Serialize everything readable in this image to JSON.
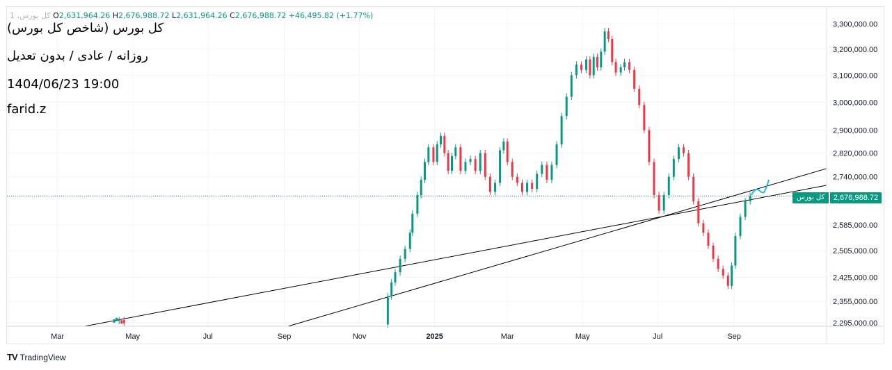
{
  "header": {
    "symbol_label": "کل بورس، 1",
    "open_key": "O",
    "open": "2,631,964.26",
    "high_key": "H",
    "high": "2,676,988.72",
    "low_key": "L",
    "low": "2,631,964.26",
    "close_key": "C",
    "close": "2,676,988.72",
    "change": "+46,495.82 (+1.77%)"
  },
  "notes": {
    "line1": "کل بورس (شاخص کل بورس)",
    "line2": "روزانه / عادی / بدون تعدیل",
    "line3": "1404/06/23 19:00",
    "line4": "farid.z"
  },
  "price_tag": {
    "series_label": "کل بورس",
    "value": "2,676,988.72"
  },
  "brand": {
    "logo": "TV",
    "name": "TradingView"
  },
  "colors": {
    "up": "#089981",
    "down": "#f23645",
    "grid": "#f0f3fa",
    "trendline": "#000000",
    "sketch": "#22b8e0"
  },
  "chart_data": {
    "type": "candlestick",
    "scale": "log",
    "y_tick_labels": [
      "3,300,000.00",
      "3,200,000.00",
      "3,100,000.00",
      "3,000,000.00",
      "2,900,000.00",
      "2,820,000.00",
      "2,740,000.00",
      "2,585,000.00",
      "2,505,000.00",
      "2,425,000.00",
      "2,355,000.00",
      "2,295,000.00"
    ],
    "y_ticks": [
      3300000,
      3200000,
      3100000,
      3000000,
      2900000,
      2820000,
      2740000,
      2585000,
      2505000,
      2425000,
      2355000,
      2295000
    ],
    "ylim": [
      2285000,
      3340000
    ],
    "x_tick_labels": [
      "Mar",
      "May",
      "Jul",
      "Sep",
      "Nov",
      "2025",
      "Mar",
      "May",
      "Jul",
      "Sep"
    ],
    "x_ticks": [
      "2024-03-01",
      "2024-05-01",
      "2024-07-01",
      "2024-09-01",
      "2024-11-01",
      "2025-01-01",
      "2025-03-01",
      "2025-05-01",
      "2025-07-01",
      "2025-09-01"
    ],
    "xlim": [
      "2024-01-20",
      "2025-11-15"
    ],
    "last_price": 2676988.72,
    "close_path": [
      [
        "2024-04-14",
        2300000
      ],
      [
        "2024-04-20",
        2302000
      ],
      [
        "2024-04-24",
        2294000
      ],
      [
        "2024-11-22",
        2290000
      ],
      [
        "2024-11-24",
        2370000
      ],
      [
        "2024-11-27",
        2410000
      ],
      [
        "2024-11-30",
        2440000
      ],
      [
        "2024-12-04",
        2480000
      ],
      [
        "2024-12-08",
        2510000
      ],
      [
        "2024-12-12",
        2560000
      ],
      [
        "2024-12-14",
        2620000
      ],
      [
        "2024-12-18",
        2680000
      ],
      [
        "2024-12-21",
        2730000
      ],
      [
        "2024-12-24",
        2790000
      ],
      [
        "2024-12-27",
        2840000
      ],
      [
        "2024-12-31",
        2790000
      ],
      [
        "2025-01-03",
        2850000
      ],
      [
        "2025-01-06",
        2880000
      ],
      [
        "2025-01-09",
        2820000
      ],
      [
        "2025-01-12",
        2760000
      ],
      [
        "2025-01-15",
        2810000
      ],
      [
        "2025-01-18",
        2840000
      ],
      [
        "2025-01-22",
        2760000
      ],
      [
        "2025-01-26",
        2790000
      ],
      [
        "2025-01-30",
        2800000
      ],
      [
        "2025-02-03",
        2760000
      ],
      [
        "2025-02-07",
        2820000
      ],
      [
        "2025-02-11",
        2740000
      ],
      [
        "2025-02-15",
        2690000
      ],
      [
        "2025-02-19",
        2720000
      ],
      [
        "2025-02-23",
        2830000
      ],
      [
        "2025-02-26",
        2860000
      ],
      [
        "2025-03-01",
        2790000
      ],
      [
        "2025-03-05",
        2740000
      ],
      [
        "2025-03-09",
        2720000
      ],
      [
        "2025-03-13",
        2690000
      ],
      [
        "2025-03-17",
        2720000
      ],
      [
        "2025-03-21",
        2700000
      ],
      [
        "2025-03-25",
        2750000
      ],
      [
        "2025-03-29",
        2780000
      ],
      [
        "2025-04-02",
        2730000
      ],
      [
        "2025-04-06",
        2780000
      ],
      [
        "2025-04-10",
        2850000
      ],
      [
        "2025-04-14",
        2950000
      ],
      [
        "2025-04-18",
        3020000
      ],
      [
        "2025-04-22",
        3100000
      ],
      [
        "2025-04-26",
        3140000
      ],
      [
        "2025-04-30",
        3120000
      ],
      [
        "2025-05-04",
        3160000
      ],
      [
        "2025-05-07",
        3100000
      ],
      [
        "2025-05-10",
        3170000
      ],
      [
        "2025-05-13",
        3130000
      ],
      [
        "2025-05-16",
        3190000
      ],
      [
        "2025-05-19",
        3270000
      ],
      [
        "2025-05-22",
        3240000
      ],
      [
        "2025-05-25",
        3150000
      ],
      [
        "2025-05-28",
        3110000
      ],
      [
        "2025-06-01",
        3130000
      ],
      [
        "2025-06-04",
        3150000
      ],
      [
        "2025-06-08",
        3120000
      ],
      [
        "2025-06-12",
        3050000
      ],
      [
        "2025-06-16",
        2990000
      ],
      [
        "2025-06-20",
        2900000
      ],
      [
        "2025-06-24",
        2790000
      ],
      [
        "2025-06-28",
        2680000
      ],
      [
        "2025-07-02",
        2630000
      ],
      [
        "2025-07-06",
        2680000
      ],
      [
        "2025-07-10",
        2740000
      ],
      [
        "2025-07-14",
        2800000
      ],
      [
        "2025-07-18",
        2840000
      ],
      [
        "2025-07-22",
        2820000
      ],
      [
        "2025-07-26",
        2740000
      ],
      [
        "2025-07-30",
        2660000
      ],
      [
        "2025-08-03",
        2590000
      ],
      [
        "2025-08-07",
        2560000
      ],
      [
        "2025-08-11",
        2520000
      ],
      [
        "2025-08-15",
        2480000
      ],
      [
        "2025-08-19",
        2450000
      ],
      [
        "2025-08-23",
        2430000
      ],
      [
        "2025-08-27",
        2400000
      ],
      [
        "2025-08-30",
        2460000
      ],
      [
        "2025-09-02",
        2550000
      ],
      [
        "2025-09-06",
        2610000
      ],
      [
        "2025-09-10",
        2660000
      ],
      [
        "2025-09-14",
        2677000
      ]
    ]
  }
}
